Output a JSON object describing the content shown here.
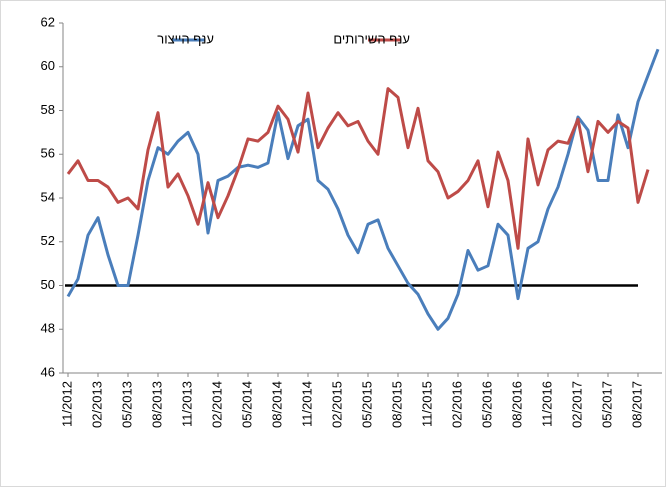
{
  "chart_data": {
    "type": "line",
    "categories": [
      "11/2012",
      null,
      null,
      "02/2013",
      null,
      null,
      "05/2013",
      null,
      null,
      "08/2013",
      null,
      null,
      "11/2013",
      null,
      null,
      "02/2014",
      null,
      null,
      "05/2014",
      null,
      null,
      "08/2014",
      null,
      null,
      "11/2014",
      null,
      null,
      "02/2015",
      null,
      null,
      "05/2015",
      null,
      null,
      "08/2015",
      null,
      null,
      "11/2015",
      null,
      null,
      "02/2016",
      null,
      null,
      "05/2016",
      null,
      null,
      "08/2016",
      null,
      null,
      "11/2016",
      null,
      null,
      "02/2017",
      null,
      null,
      "05/2017",
      null,
      null,
      "08/2017",
      null,
      null
    ],
    "series": [
      {
        "name": "ענף הייצור",
        "color": "#4a7ebb",
        "values": [
          49.5,
          50.3,
          52.3,
          53.1,
          51.4,
          50.0,
          50.0,
          52.3,
          54.8,
          56.3,
          56.0,
          56.6,
          57.0,
          56.0,
          52.4,
          54.8,
          55.0,
          55.4,
          55.5,
          55.4,
          55.6,
          57.9,
          55.8,
          57.3,
          57.6,
          54.8,
          54.4,
          53.5,
          52.3,
          51.5,
          52.8,
          53.0,
          51.7,
          50.9,
          50.1,
          49.6,
          48.7,
          48.0,
          48.5,
          49.6,
          51.6,
          50.7,
          50.9,
          52.8,
          52.3,
          49.4,
          51.7,
          52.0,
          53.5,
          54.5,
          56.0,
          57.7,
          57.1,
          54.8,
          54.8,
          57.8,
          56.3,
          58.4,
          59.6,
          60.8
        ]
      },
      {
        "name": "ענף השירותים",
        "color": "#be4b48",
        "values": [
          55.1,
          55.7,
          54.8,
          54.8,
          54.5,
          53.8,
          54.0,
          53.5,
          56.2,
          57.9,
          54.5,
          55.1,
          54.1,
          52.8,
          54.7,
          53.1,
          54.1,
          55.3,
          56.7,
          56.6,
          57.0,
          58.2,
          57.6,
          56.1,
          58.8,
          56.3,
          57.2,
          57.9,
          57.3,
          57.5,
          56.6,
          56.0,
          59.0,
          58.6,
          56.3,
          58.1,
          55.7,
          55.2,
          54.0,
          54.3,
          54.8,
          55.7,
          53.6,
          56.1,
          54.8,
          51.7,
          56.7,
          54.6,
          56.2,
          56.6,
          56.5,
          57.6,
          55.2,
          57.5,
          57.0,
          57.5,
          57.2,
          53.8,
          55.3,
          null
        ]
      }
    ],
    "reference_line": 50,
    "ylim": [
      46,
      62
    ],
    "yticks": [
      46,
      48,
      50,
      52,
      54,
      56,
      58,
      60,
      62
    ],
    "grid": false
  }
}
